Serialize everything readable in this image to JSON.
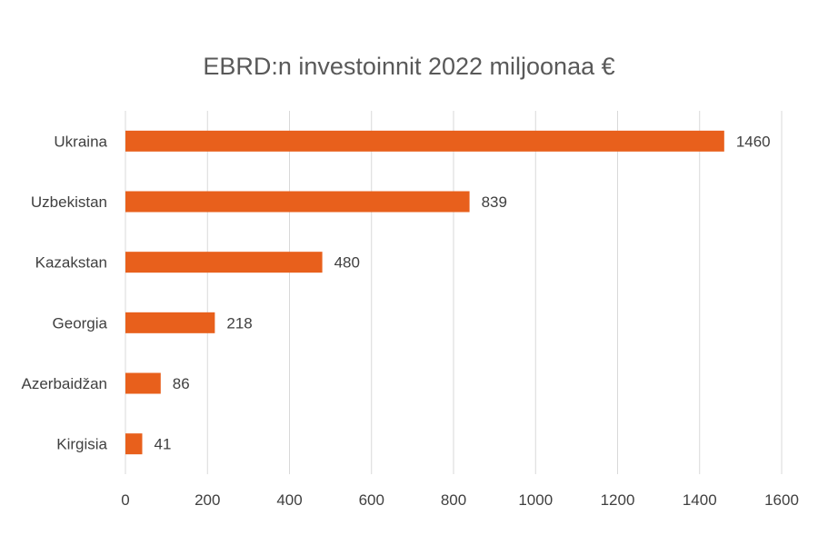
{
  "chart_data": {
    "type": "bar",
    "orientation": "horizontal",
    "title": "EBRD:n investoinnit 2022 miljoonaa €",
    "categories": [
      "Ukraina",
      "Uzbekistan",
      "Kazakstan",
      "Georgia",
      "Azerbaidžan",
      "Kirgisia"
    ],
    "values": [
      1460,
      839,
      480,
      218,
      86,
      41
    ],
    "data_labels": [
      "1460",
      "839",
      "480",
      "218",
      "86",
      "41"
    ],
    "xlim": [
      0,
      1600
    ],
    "xticks": [
      0,
      200,
      400,
      600,
      800,
      1000,
      1200,
      1400,
      1600
    ],
    "xtick_labels": [
      "0",
      "200",
      "400",
      "600",
      "800",
      "1000",
      "1200",
      "1400",
      "1600"
    ],
    "grid": "vertical",
    "legend": "none",
    "bar_color": "#E8601C",
    "grid_color": "#D9D9D9"
  }
}
